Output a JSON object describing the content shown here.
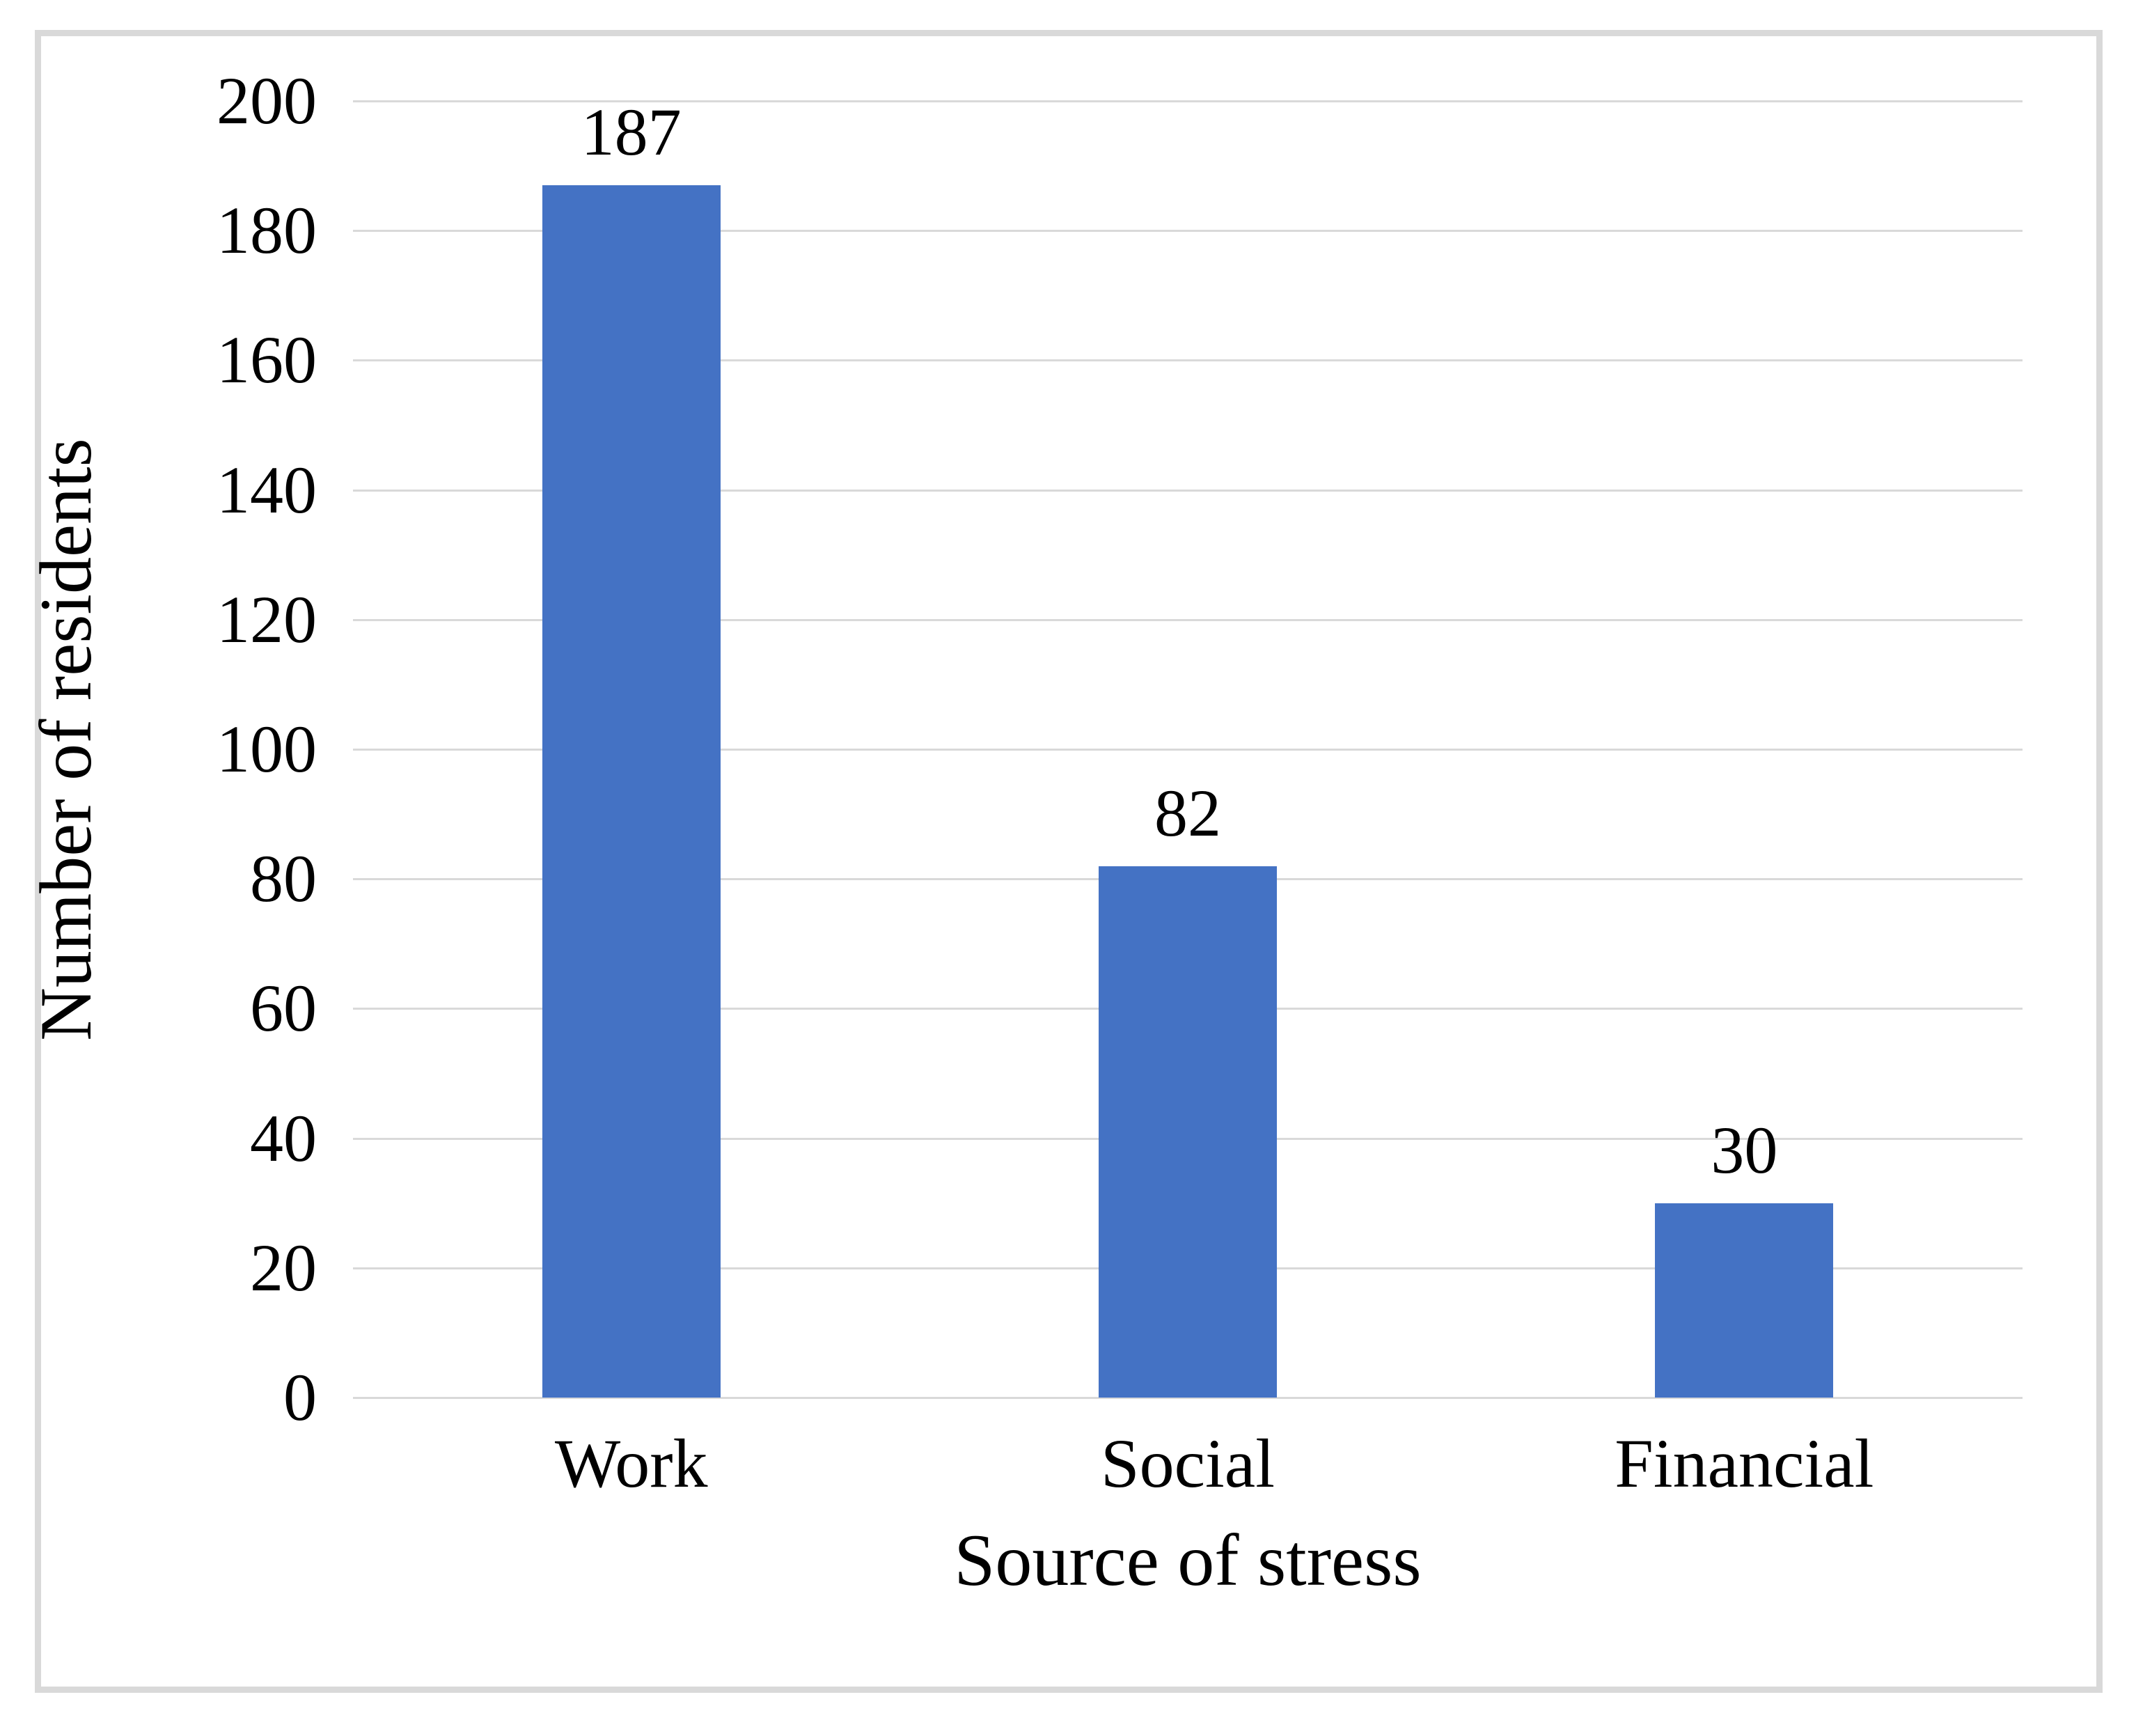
{
  "chart_data": {
    "type": "bar",
    "title": "",
    "categories": [
      "Work",
      "Social",
      "Financial"
    ],
    "values": [
      187,
      82,
      30
    ],
    "data_labels": [
      "187",
      "82",
      "30"
    ],
    "xlabel": "Source of stress",
    "ylabel": "Number of residents",
    "ylim": [
      0,
      200
    ],
    "ytick_step": 20,
    "ytick_labels": [
      "0",
      "20",
      "40",
      "60",
      "80",
      "100",
      "120",
      "140",
      "160",
      "180",
      "200"
    ],
    "grid": "horizontal",
    "legend_position": "none",
    "bar_color": "#4472C4",
    "gridline_color": "#D9D9D9",
    "frame_color": "#D9D9D9",
    "text_color": "#000000",
    "background_color": "#FFFFFF",
    "bar_width_fraction": 0.32
  }
}
